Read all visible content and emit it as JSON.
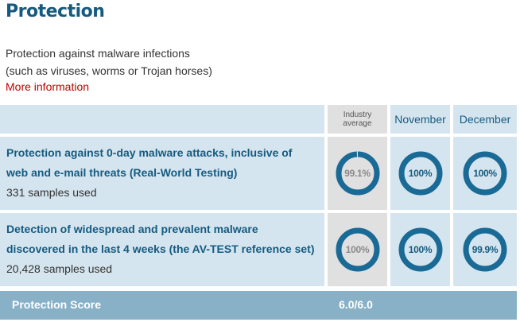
{
  "section": {
    "title": "Protection",
    "description_line1": "Protection against malware infections",
    "description_line2": "(such as viruses, worms or Trojan horses)",
    "more_link": "More information"
  },
  "columns": {
    "industry": "Industry average",
    "month1": "November",
    "month2": "December"
  },
  "rows": [
    {
      "title_line1": "Protection against 0-day malware attacks, inclusive of",
      "title_line2": "web and e-mail threats (Real-World Testing)",
      "samples": "331 samples used",
      "industry": {
        "label": "99.1%",
        "value": 99.1
      },
      "month1": {
        "label": "100%",
        "value": 100
      },
      "month2": {
        "label": "100%",
        "value": 100
      }
    },
    {
      "title_line1": "Detection of widespread and prevalent malware",
      "title_line2": "discovered in the last 4 weeks (the AV-TEST reference set)",
      "samples": "20,428 samples used",
      "industry": {
        "label": "100%",
        "value": 100
      },
      "month1": {
        "label": "100%",
        "value": 100
      },
      "month2": {
        "label": "99.9%",
        "value": 99.9
      }
    }
  ],
  "score": {
    "label": "Protection Score",
    "value": "6.0/6.0"
  },
  "colors": {
    "gauge_ring": "#1a6a96",
    "gauge_track": "#d5e5ef",
    "industry_text": "#8a8a8a",
    "month_text": "#155b80"
  }
}
